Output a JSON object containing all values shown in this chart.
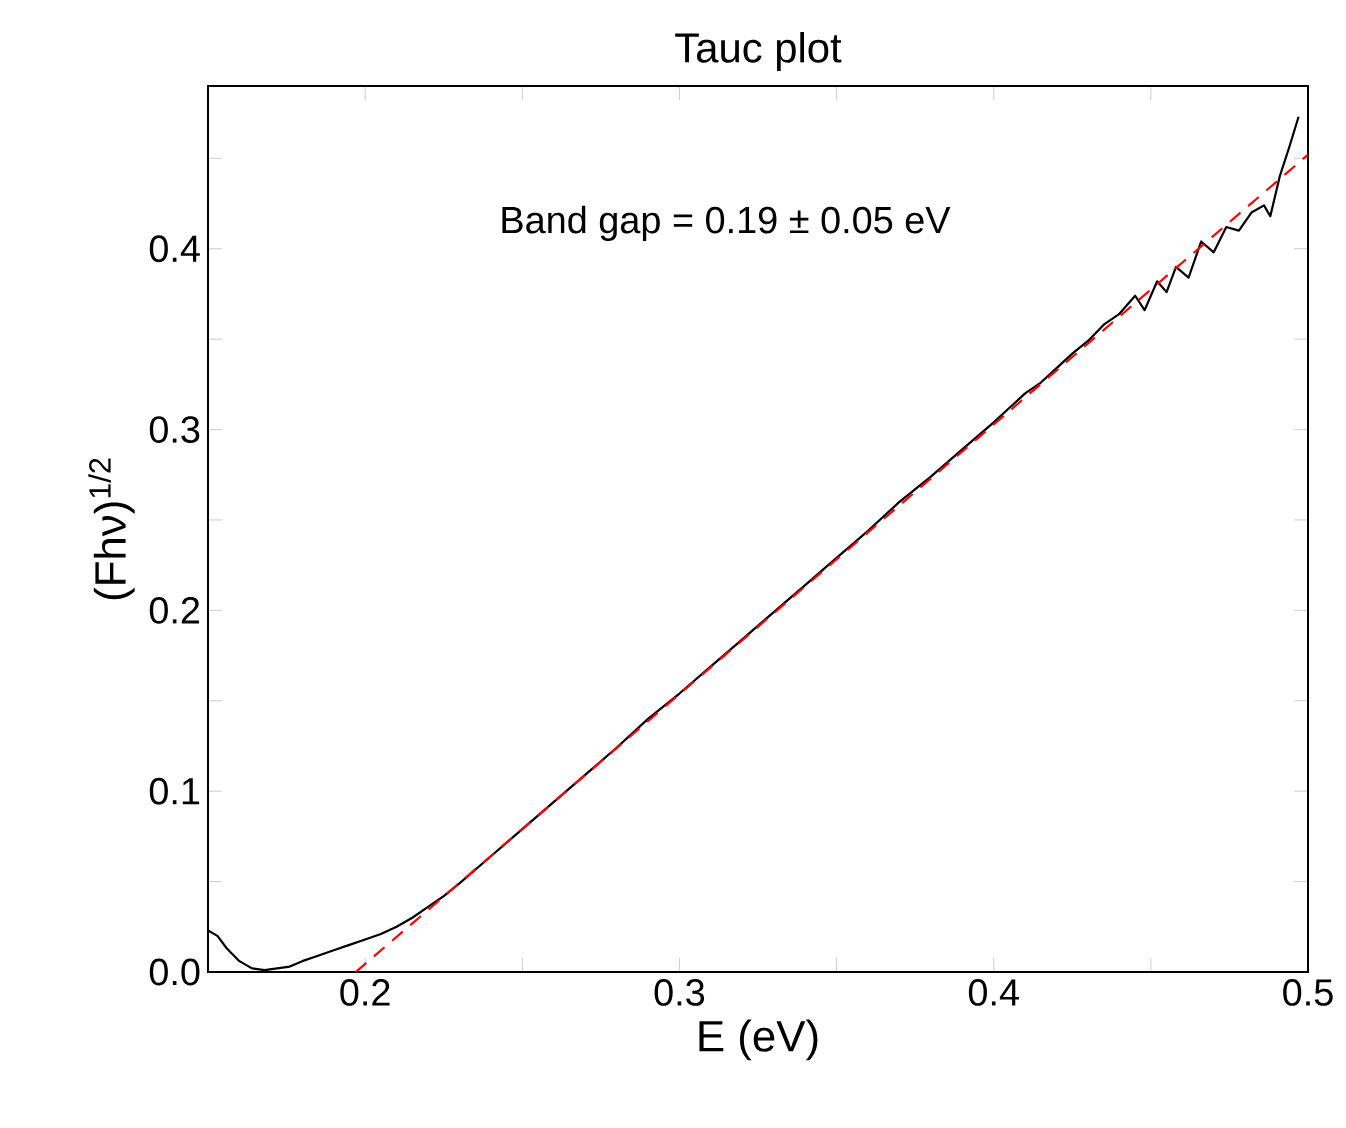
{
  "chart_data": {
    "type": "line",
    "title": "Tauc plot",
    "xlabel": "E (eV)",
    "ylabel": "(Fhν)$^{1/2}$",
    "xlim": [
      0.15,
      0.5
    ],
    "ylim": [
      0,
      0.49
    ],
    "xticks": [
      0.2,
      {
        "value": 0.25,
        "label": null
      },
      0.3,
      {
        "value": 0.35,
        "label": null
      },
      0.4,
      {
        "value": 0.45,
        "label": null
      },
      0.5
    ],
    "yticks": [
      {
        "value": 0,
        "label": "0.0"
      },
      {
        "value": 0.05,
        "label": null
      },
      0.1,
      {
        "value": 0.15,
        "label": null
      },
      0.2,
      {
        "value": 0.25,
        "label": null
      },
      0.3,
      {
        "value": 0.35,
        "label": null
      },
      0.4,
      {
        "value": 0.45,
        "label": null
      }
    ],
    "grid": false,
    "annotations": [
      "Band gap = 0.19 ± 0.05 eV"
    ],
    "series": [
      {
        "color": "#000000",
        "line_style": "solid",
        "x": [
          0.15,
          0.153,
          0.156,
          0.16,
          0.164,
          0.168,
          0.172,
          0.176,
          0.18,
          0.185,
          0.19,
          0.195,
          0.2,
          0.205,
          0.21,
          0.215,
          0.22,
          0.225,
          0.23,
          0.24,
          0.25,
          0.26,
          0.27,
          0.28,
          0.29,
          0.3,
          0.31,
          0.32,
          0.33,
          0.34,
          0.35,
          0.36,
          0.37,
          0.38,
          0.39,
          0.4,
          0.41,
          0.415,
          0.42,
          0.425,
          0.43,
          0.435,
          0.44,
          0.445,
          0.448,
          0.452,
          0.455,
          0.458,
          0.462,
          0.466,
          0.47,
          0.474,
          0.478,
          0.482,
          0.486,
          0.488,
          0.491,
          0.494,
          0.497
        ],
        "values": [
          0.023,
          0.02,
          0.013,
          0.006,
          0.002,
          0.001,
          0.002,
          0.003,
          0.006,
          0.009,
          0.012,
          0.015,
          0.018,
          0.021,
          0.025,
          0.03,
          0.036,
          0.042,
          0.049,
          0.064,
          0.079,
          0.094,
          0.109,
          0.124,
          0.14,
          0.154,
          0.169,
          0.184,
          0.199,
          0.214,
          0.229,
          0.244,
          0.26,
          0.274,
          0.289,
          0.304,
          0.32,
          0.326,
          0.334,
          0.342,
          0.349,
          0.358,
          0.364,
          0.374,
          0.366,
          0.382,
          0.376,
          0.39,
          0.384,
          0.404,
          0.398,
          0.412,
          0.41,
          0.42,
          0.424,
          0.418,
          0.44,
          0.456,
          0.473
        ]
      },
      {
        "color": "#ff0000",
        "line_style": "dashed",
        "x": [
          0.197,
          0.5
        ],
        "values": [
          0,
          0.452
        ]
      }
    ]
  }
}
